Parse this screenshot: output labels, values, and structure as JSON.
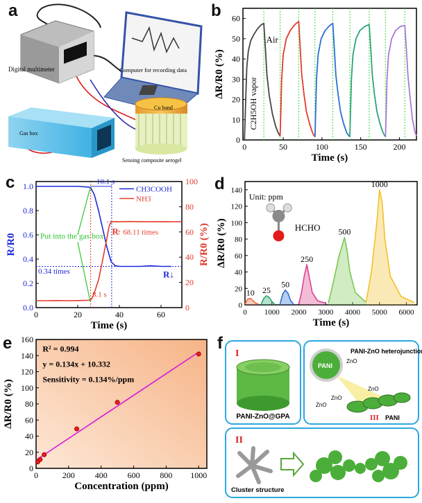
{
  "panels": {
    "a": {
      "letter": "a",
      "labels": {
        "multimeter": "Digital multimeter",
        "computer": "Computer for recording data",
        "gasbox": "Gas box",
        "cuband": "Cu band",
        "aerogel": "Sensing composite aerogel"
      }
    },
    "f": {
      "letter": "f",
      "labels": {
        "I": "I",
        "II": "II",
        "III": "III",
        "gpa": "PANI-ZnO@GPA",
        "hetero": "PANI-ZnO heterojunctions",
        "pani_sphere": "PANI",
        "pani": "PANI",
        "zno": "ZnO",
        "cluster": "Cluster structure"
      }
    }
  },
  "chart_data": [
    {
      "panel": "b",
      "type": "line",
      "xlabel": "Time (s)",
      "ylabel": "ΔR/R0 (%)",
      "xlim": [
        -2,
        222
      ],
      "ylim": [
        0,
        65
      ],
      "xticks": [
        0,
        50,
        100,
        150,
        200
      ],
      "yticks": [
        0,
        10,
        20,
        30,
        40,
        50,
        60
      ],
      "annotations": [
        "Air",
        "C2H5OH vapor"
      ],
      "markers_x": [
        25,
        46,
        70,
        91,
        114,
        136,
        161,
        182,
        207
      ],
      "series": [
        {
          "color": "#444444",
          "x": [
            0,
            1,
            2,
            3,
            5,
            8,
            12,
            17,
            22,
            25,
            27,
            29,
            32,
            36,
            40,
            43,
            45,
            46
          ],
          "y": [
            0,
            12,
            25,
            36,
            44,
            49,
            52,
            55,
            57,
            57.5,
            45,
            32,
            22,
            13,
            7,
            4,
            2.5,
            2
          ]
        },
        {
          "color": "#e03b2e",
          "x": [
            46,
            47,
            48,
            50,
            54,
            59,
            65,
            70,
            72,
            74,
            77,
            80,
            84,
            88,
            91
          ],
          "y": [
            2,
            15,
            30,
            42,
            50,
            54,
            57,
            58.5,
            45,
            32,
            22,
            14,
            8,
            3.5,
            1.5
          ]
        },
        {
          "color": "#2a6fd1",
          "x": [
            91,
            92,
            93,
            95,
            99,
            104,
            110,
            114,
            116,
            118,
            121,
            124,
            128,
            132,
            136
          ],
          "y": [
            1.5,
            15,
            30,
            42,
            50,
            54,
            56.5,
            57.5,
            45,
            32,
            22,
            14,
            8,
            3.5,
            1.5
          ]
        },
        {
          "color": "#2aa572",
          "x": [
            136,
            137,
            138,
            140,
            144,
            149,
            155,
            161,
            163,
            165,
            168,
            171,
            175,
            179,
            182
          ],
          "y": [
            1.5,
            15,
            30,
            42,
            50,
            54,
            56,
            57,
            45,
            32,
            22,
            14,
            8,
            3.5,
            1.5
          ]
        },
        {
          "color": "#a779d6",
          "x": [
            182,
            183,
            184,
            186,
            190,
            195,
            201,
            207,
            209,
            211,
            214,
            217,
            220,
            222
          ],
          "y": [
            1.5,
            15,
            30,
            42,
            50,
            54,
            56,
            56.5,
            45,
            32,
            20,
            10,
            4,
            2
          ]
        }
      ]
    },
    {
      "panel": "c",
      "type": "line",
      "xlabel": "Time (s)",
      "ylabel": "R/R0",
      "ylabel_right": "R/R0 (%)",
      "xlim": [
        0,
        70
      ],
      "ylim": [
        0,
        1.04
      ],
      "ylim_right": [
        0,
        100
      ],
      "xticks": [
        0,
        20,
        40,
        60
      ],
      "yticks": [
        0.0,
        0.2,
        0.4,
        0.6,
        0.8,
        1.0
      ],
      "yticks_right": [
        0,
        20,
        40,
        60,
        80,
        100
      ],
      "legend": [
        "CH3COOH",
        "NH3"
      ],
      "annotations": [
        "10.1 s",
        "Put into the gas box",
        "0.34 times",
        "8.1 s",
        "68.11 times",
        "R"
      ],
      "series": [
        {
          "name": "CH3COOH",
          "axis": "left",
          "color": "#1f2ad6",
          "x": [
            0,
            5,
            10,
            15,
            20,
            25,
            26.2,
            28,
            30,
            32,
            34,
            36,
            38,
            40,
            45,
            50,
            55,
            60,
            65
          ],
          "y": [
            1.0,
            1.0,
            1.0,
            1.0,
            1.0,
            0.995,
            0.99,
            0.93,
            0.8,
            0.65,
            0.5,
            0.38,
            0.345,
            0.34,
            0.34,
            0.34,
            0.345,
            0.34,
            0.34
          ]
        },
        {
          "name": "NH3",
          "axis": "right",
          "color": "#e33a2c",
          "x": [
            0,
            5,
            10,
            15,
            20,
            25,
            26.2,
            27,
            28,
            30,
            32,
            34,
            35,
            36,
            38,
            40,
            45,
            50,
            55,
            60,
            65,
            70
          ],
          "y": [
            5.5,
            5.5,
            5.6,
            5.5,
            5.6,
            5.8,
            6,
            8,
            12,
            22,
            38,
            55,
            64,
            68.1,
            68.2,
            68.1,
            68.3,
            68.2,
            68.1,
            68.2,
            68.1,
            68.2
          ]
        }
      ]
    },
    {
      "panel": "d",
      "type": "line",
      "xlabel": "Time (s)",
      "ylabel": "ΔR/R0 (%)",
      "xlim": [
        0,
        6400
      ],
      "ylim": [
        0,
        150
      ],
      "xticks": [
        0,
        1000,
        2000,
        3000,
        4000,
        5000,
        6000
      ],
      "yticks": [
        0,
        20,
        40,
        60,
        80,
        100,
        120,
        140
      ],
      "annotations": [
        "Unit: ppm",
        "HCHO"
      ],
      "series": [
        {
          "name": "10",
          "color": "#ee6b3a",
          "x": [
            0,
            100,
            200,
            300,
            400,
            500
          ],
          "y": [
            1,
            7,
            8,
            5,
            2,
            1
          ]
        },
        {
          "name": "25",
          "color": "#2aa572",
          "x": [
            600,
            700,
            800,
            900,
            1000,
            1100
          ],
          "y": [
            1,
            8,
            11,
            9,
            4,
            1
          ]
        },
        {
          "name": "50",
          "color": "#2a6fd1",
          "x": [
            1300,
            1400,
            1500,
            1600,
            1700,
            1800
          ],
          "y": [
            1,
            13,
            18,
            14,
            5,
            1
          ]
        },
        {
          "name": "250",
          "color": "#d9438c",
          "x": [
            2000,
            2100,
            2200,
            2300,
            2400,
            2500,
            2700,
            3000
          ],
          "y": [
            1,
            15,
            35,
            49,
            32,
            15,
            5,
            2
          ]
        },
        {
          "name": "500",
          "color": "#7cc651",
          "x": [
            3100,
            3300,
            3500,
            3700,
            3800,
            3900,
            4100,
            4500
          ],
          "y": [
            2,
            30,
            60,
            82,
            65,
            40,
            15,
            3
          ]
        },
        {
          "name": "1000",
          "color": "#f2c12a",
          "x": [
            4500,
            4700,
            4900,
            5000,
            5100,
            5200,
            5400,
            5800,
            6300
          ],
          "y": [
            3,
            40,
            100,
            140,
            125,
            80,
            35,
            10,
            3
          ]
        }
      ]
    },
    {
      "panel": "e",
      "type": "scatter",
      "xlabel": "Concentration (ppm)",
      "ylabel": "ΔR/R0 (%)",
      "xlim": [
        0,
        1050
      ],
      "ylim": [
        0,
        160
      ],
      "xticks": [
        0,
        200,
        400,
        600,
        800,
        1000
      ],
      "yticks": [
        0,
        20,
        40,
        60,
        80,
        100,
        120,
        140,
        160
      ],
      "annotations": [
        "R² = 0.994",
        "y = 0.134x + 10.332",
        "Sensitivity = 0.134%/ppm"
      ],
      "series": [
        {
          "name": "points",
          "color": "#e32222",
          "x": [
            10,
            25,
            50,
            250,
            500,
            1000
          ],
          "y": [
            8,
            11,
            17,
            49,
            82,
            142
          ]
        },
        {
          "name": "fit",
          "color": "#d91adb",
          "x": [
            0,
            1000
          ],
          "y": [
            10.332,
            144.332
          ]
        }
      ]
    }
  ]
}
